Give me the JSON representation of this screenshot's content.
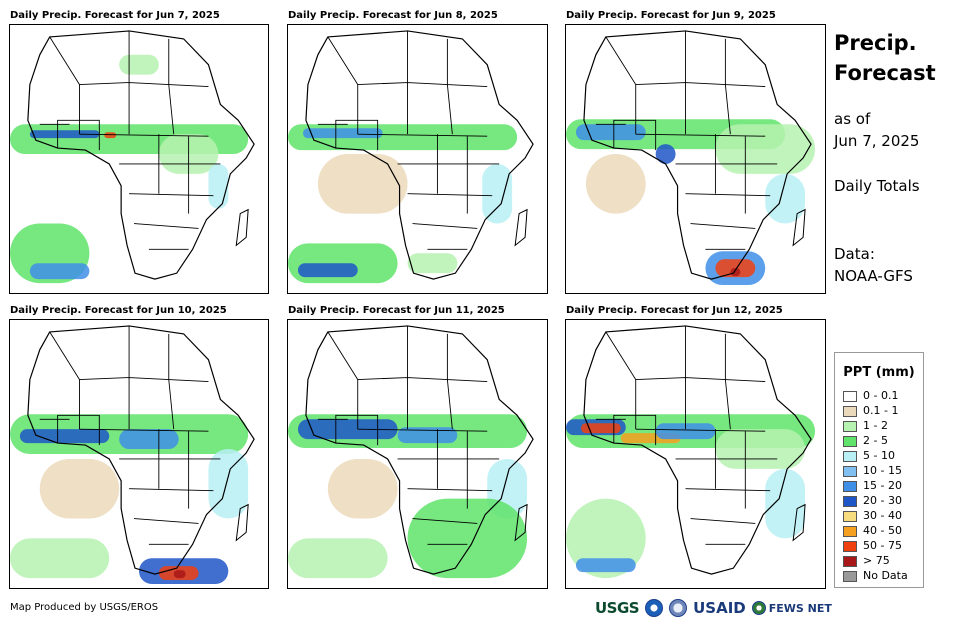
{
  "panels": [
    {
      "title": "Daily Precip. Forecast for Jun 7, 2025"
    },
    {
      "title": "Daily Precip. Forecast for Jun 8, 2025"
    },
    {
      "title": "Daily Precip. Forecast for Jun 9, 2025"
    },
    {
      "title": "Daily Precip. Forecast for Jun 10, 2025"
    },
    {
      "title": "Daily Precip. Forecast for Jun 11, 2025"
    },
    {
      "title": "Daily Precip. Forecast for Jun 12, 2025"
    }
  ],
  "sidebar": {
    "title_line1": "Precip.",
    "title_line2": "Forecast",
    "asof_line1": "as of",
    "asof_line2": "Jun 7, 2025",
    "totals": "Daily Totals",
    "data_line1": "Data:",
    "data_line2": "NOAA-GFS"
  },
  "legend": {
    "title": "PPT (mm)",
    "items": [
      {
        "label": "0 - 0.1",
        "color": "#ffffff"
      },
      {
        "label": "0.1 - 1",
        "color": "#ebd9bb"
      },
      {
        "label": "1 - 2",
        "color": "#b6f2b0"
      },
      {
        "label": "2 - 5",
        "color": "#5fe36a"
      },
      {
        "label": "5 - 10",
        "color": "#b8f0f5"
      },
      {
        "label": "10 - 15",
        "color": "#80bff0"
      },
      {
        "label": "15 - 20",
        "color": "#3f8fe8"
      },
      {
        "label": "20 - 30",
        "color": "#1e56c8"
      },
      {
        "label": "30 - 40",
        "color": "#f7dc80"
      },
      {
        "label": "40 - 50",
        "color": "#f5a020"
      },
      {
        "label": "50 - 75",
        "color": "#f04010"
      },
      {
        "label": "> 75",
        "color": "#a81818"
      },
      {
        "label": "No Data",
        "color": "#999999"
      }
    ]
  },
  "footer": {
    "credit": "Map Produced by USGS/EROS",
    "logo_usgs": "USGS",
    "logo_usaid": "USAID",
    "logo_fews": "FEWS NET"
  }
}
